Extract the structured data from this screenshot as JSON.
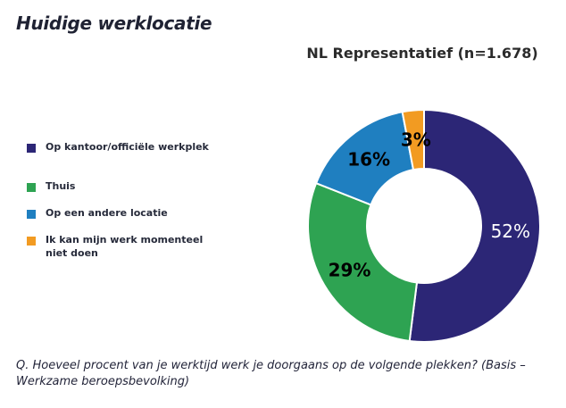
{
  "page": {
    "title": "Huidige werklocatie",
    "footnote": "Q. Hoeveel procent van je werktijd werk je doorgaans op de volgende plekken? (Basis – Werkzame beroepsbevolking)"
  },
  "chart_data": {
    "type": "pie",
    "donut": true,
    "title": "NL Representatief (n=1.678)",
    "legend_position": "left",
    "categories": [
      "Op kantoor/officiële werkplek",
      "Thuis",
      "Op een andere locatie",
      "Ik kan mijn werk momenteel niet doen"
    ],
    "values": [
      52,
      29,
      16,
      3
    ],
    "labels": [
      "52%",
      "29%",
      "16%",
      "3%"
    ],
    "colors": [
      "#2c2676",
      "#2ea352",
      "#1f7fc0",
      "#f29b22"
    ],
    "label_colors": [
      "#ffffff",
      "#000000",
      "#000000",
      "#000000"
    ],
    "start_angle_deg": 0,
    "direction": "clockwise"
  }
}
